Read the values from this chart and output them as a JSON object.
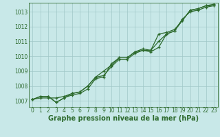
{
  "xlabel": "Graphe pression niveau de la mer (hPa)",
  "xlim": [
    -0.5,
    23.5
  ],
  "ylim": [
    1006.6,
    1013.6
  ],
  "yticks": [
    1007,
    1008,
    1009,
    1010,
    1011,
    1012,
    1013
  ],
  "xticks": [
    0,
    1,
    2,
    3,
    4,
    5,
    6,
    7,
    8,
    9,
    10,
    11,
    12,
    13,
    14,
    15,
    16,
    17,
    18,
    19,
    20,
    21,
    22,
    23
  ],
  "bg_color": "#c8e8e8",
  "grid_color": "#a0c8c8",
  "line_color": "#2d6a2d",
  "series": [
    [
      1007.1,
      1007.3,
      1007.3,
      1006.9,
      1007.2,
      1007.5,
      1007.6,
      1008.0,
      1008.6,
      1008.7,
      1009.3,
      1009.8,
      1009.8,
      1010.2,
      1010.4,
      1010.3,
      1010.6,
      1011.5,
      1011.7,
      1012.5,
      1013.0,
      1013.1,
      1013.3,
      1013.4
    ],
    [
      1007.1,
      1007.2,
      1007.2,
      1007.2,
      1007.3,
      1007.5,
      1007.6,
      1008.0,
      1008.6,
      1009.0,
      1009.4,
      1009.9,
      1009.9,
      1010.3,
      1010.4,
      1010.4,
      1011.0,
      1011.5,
      1011.7,
      1012.4,
      1013.1,
      1013.2,
      1013.4,
      1013.4
    ],
    [
      1007.1,
      1007.3,
      1007.3,
      1006.9,
      1007.2,
      1007.4,
      1007.5,
      1007.8,
      1008.5,
      1008.6,
      1009.5,
      1009.9,
      1009.9,
      1010.3,
      1010.5,
      1010.4,
      1011.5,
      1011.6,
      1011.8,
      1012.4,
      1013.1,
      1013.2,
      1013.4,
      1013.5
    ]
  ],
  "marker": "+",
  "markersize": 3.5,
  "linewidth": 0.9,
  "tick_fontsize": 5.5,
  "xlabel_fontsize": 7,
  "axes_color": "#2d6a2d"
}
